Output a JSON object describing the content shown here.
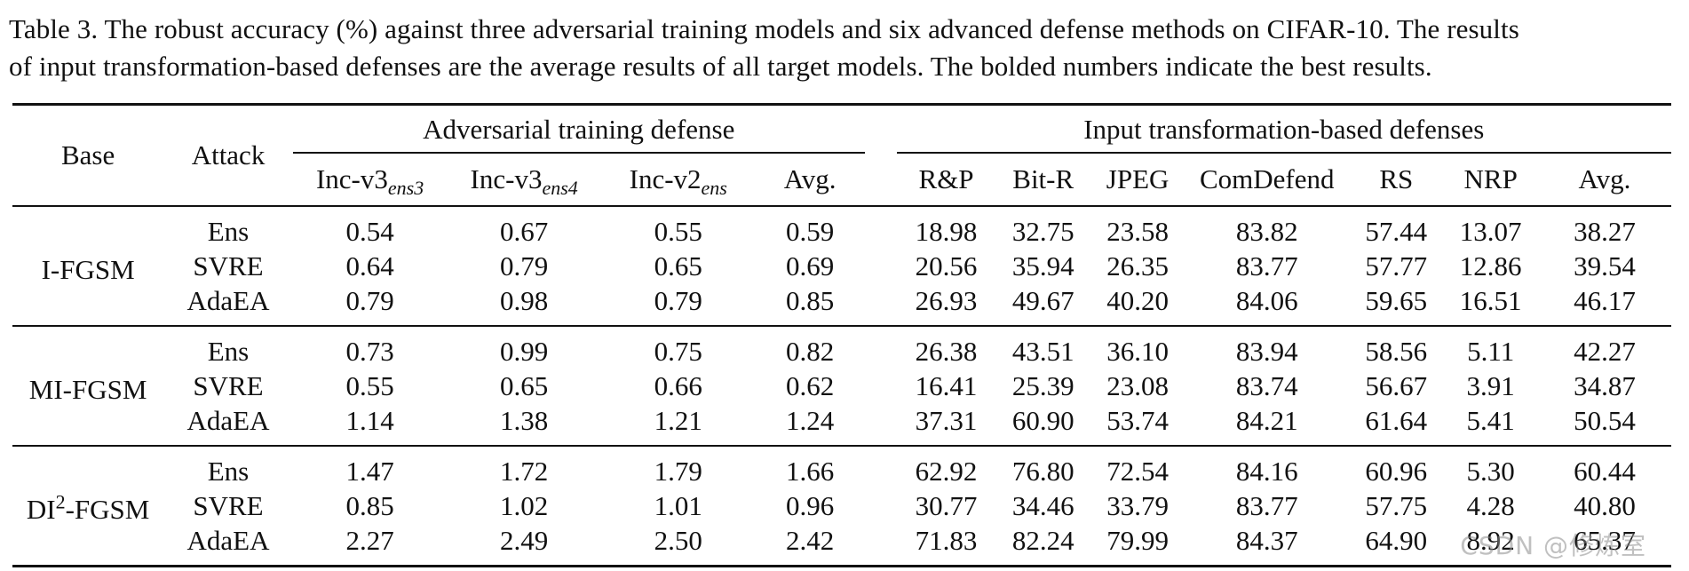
{
  "caption": {
    "line1": "Table 3. The robust accuracy (%) against three adversarial training models and six advanced defense methods on CIFAR-10. The results",
    "line2": "of input transformation-based defenses are the average results of all target models. The bolded numbers indicate the best results."
  },
  "headers": {
    "base": "Base",
    "attack": "Attack",
    "group_adv": "Adversarial training defense",
    "group_input": "Input transformation-based defenses",
    "adv_cols": [
      {
        "main": "Inc-v3",
        "sub": "ens3"
      },
      {
        "main": "Inc-v3",
        "sub": "ens4"
      },
      {
        "main": "Inc-v2",
        "sub": "ens"
      },
      {
        "main": "Avg.",
        "sub": ""
      }
    ],
    "input_cols": [
      "R&P",
      "Bit-R",
      "JPEG",
      "ComDefend",
      "RS",
      "NRP",
      "Avg."
    ]
  },
  "blocks": [
    {
      "base": {
        "pre": "I-FGSM",
        "sup": "",
        "post": ""
      },
      "rows": [
        {
          "attack": "Ens",
          "best": false,
          "adv": [
            "0.54",
            "0.67",
            "0.55",
            "0.59"
          ],
          "input": [
            "18.98",
            "32.75",
            "23.58",
            "83.82",
            "57.44",
            "13.07",
            "38.27"
          ]
        },
        {
          "attack": "SVRE",
          "best": false,
          "adv": [
            "0.64",
            "0.79",
            "0.65",
            "0.69"
          ],
          "input": [
            "20.56",
            "35.94",
            "26.35",
            "83.77",
            "57.77",
            "12.86",
            "39.54"
          ]
        },
        {
          "attack": "AdaEA",
          "best": true,
          "adv": [
            "0.79",
            "0.98",
            "0.79",
            "0.85"
          ],
          "input": [
            "26.93",
            "49.67",
            "40.20",
            "84.06",
            "59.65",
            "16.51",
            "46.17"
          ]
        }
      ]
    },
    {
      "base": {
        "pre": "MI-FGSM",
        "sup": "",
        "post": ""
      },
      "rows": [
        {
          "attack": "Ens",
          "best": false,
          "adv": [
            "0.73",
            "0.99",
            "0.75",
            "0.82"
          ],
          "input": [
            "26.38",
            "43.51",
            "36.10",
            "83.94",
            "58.56",
            "5.11",
            "42.27"
          ]
        },
        {
          "attack": "SVRE",
          "best": false,
          "adv": [
            "0.55",
            "0.65",
            "0.66",
            "0.62"
          ],
          "input": [
            "16.41",
            "25.39",
            "23.08",
            "83.74",
            "56.67",
            "3.91",
            "34.87"
          ]
        },
        {
          "attack": "AdaEA",
          "best": true,
          "adv": [
            "1.14",
            "1.38",
            "1.21",
            "1.24"
          ],
          "input": [
            "37.31",
            "60.90",
            "53.74",
            "84.21",
            "61.64",
            "5.41",
            "50.54"
          ]
        }
      ]
    },
    {
      "base": {
        "pre": "DI",
        "sup": "2",
        "post": "-FGSM"
      },
      "rows": [
        {
          "attack": "Ens",
          "best": false,
          "adv": [
            "1.47",
            "1.72",
            "1.79",
            "1.66"
          ],
          "input": [
            "62.92",
            "76.80",
            "72.54",
            "84.16",
            "60.96",
            "5.30",
            "60.44"
          ]
        },
        {
          "attack": "SVRE",
          "best": false,
          "adv": [
            "0.85",
            "1.02",
            "1.01",
            "0.96"
          ],
          "input": [
            "30.77",
            "34.46",
            "33.79",
            "83.77",
            "57.75",
            "4.28",
            "40.80"
          ]
        },
        {
          "attack": "AdaEA",
          "best": true,
          "adv": [
            "2.27",
            "2.49",
            "2.50",
            "2.42"
          ],
          "input": [
            "71.83",
            "82.24",
            "79.99",
            "84.37",
            "64.90",
            "8.92",
            "65.37"
          ]
        }
      ]
    }
  ],
  "watermark": "CSDN @修炼室"
}
